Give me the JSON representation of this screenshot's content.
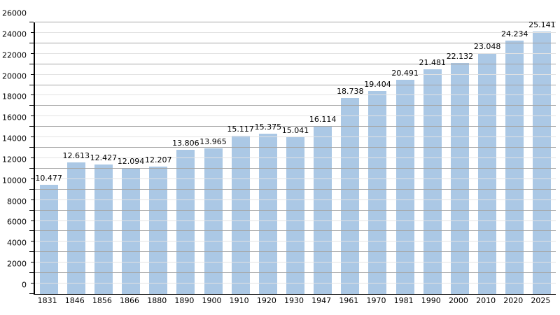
{
  "chart_data": {
    "type": "bar",
    "title": "",
    "xlabel": "",
    "ylabel": "",
    "categories": [
      "1831",
      "1846",
      "1856",
      "1866",
      "1880",
      "1890",
      "1900",
      "1910",
      "1920",
      "1930",
      "1947",
      "1961",
      "1970",
      "1981",
      "1990",
      "2000",
      "2010",
      "2020",
      "2025"
    ],
    "values": [
      10477,
      12613,
      12427,
      12094,
      12207,
      13806,
      13965,
      15117,
      15375,
      15041,
      16114,
      18738,
      19404,
      20491,
      21481,
      22132,
      23048,
      24234,
      25141
    ],
    "value_labels": [
      "10.477",
      "12.613",
      "12.427",
      "12.094",
      "12.207",
      "13.806",
      "13.965",
      "15.117",
      "15.375",
      "15.041",
      "16.114",
      "18.738",
      "19.404",
      "20.491",
      "21.481",
      "22.132",
      "23.048",
      "24.234",
      "25.141"
    ],
    "ylim": [
      0,
      26000
    ],
    "y_major_step": 2000,
    "y_minor_step": 1000,
    "y_tick_labels": [
      "0",
      "2000",
      "4000",
      "6000",
      "8000",
      "10000",
      "12000",
      "14000",
      "16000",
      "18000",
      "20000",
      "22000",
      "24000",
      "26000"
    ],
    "grid": true,
    "legend_position": "none",
    "colors": {
      "bar": "#abc8e5",
      "major_grid": "#a5a5a5",
      "minor_grid": "#e2e2e2",
      "axis": "#000000",
      "text": "#000000",
      "background": "#ffffff"
    }
  }
}
